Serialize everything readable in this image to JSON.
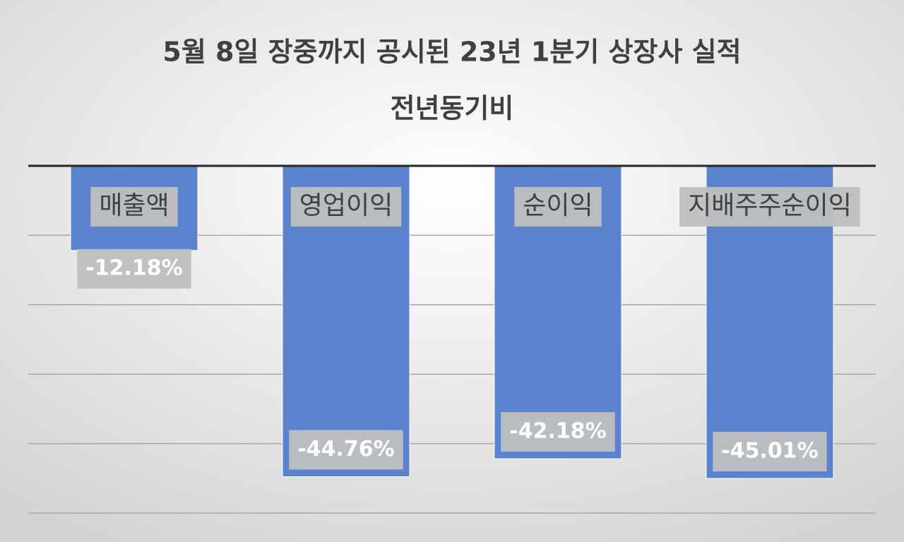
{
  "chart_data": {
    "type": "bar",
    "title": [
      "5월 8일 장중까지 공시된 23년 1분기 상장사 실적",
      "전년동기비"
    ],
    "categories": [
      "매출액",
      "영업이익",
      "순이익",
      "지배주주순이익"
    ],
    "values": [
      -12.18,
      -44.76,
      -42.18,
      -45.01
    ],
    "value_labels": [
      "-12.18%",
      "-44.76%",
      "-42.18%",
      "-45.01%"
    ],
    "color": "#5b82cc",
    "ylim": [
      -50,
      0
    ],
    "yticks": [
      -50,
      -40,
      -30,
      -20,
      -10,
      0
    ],
    "grid": true
  }
}
